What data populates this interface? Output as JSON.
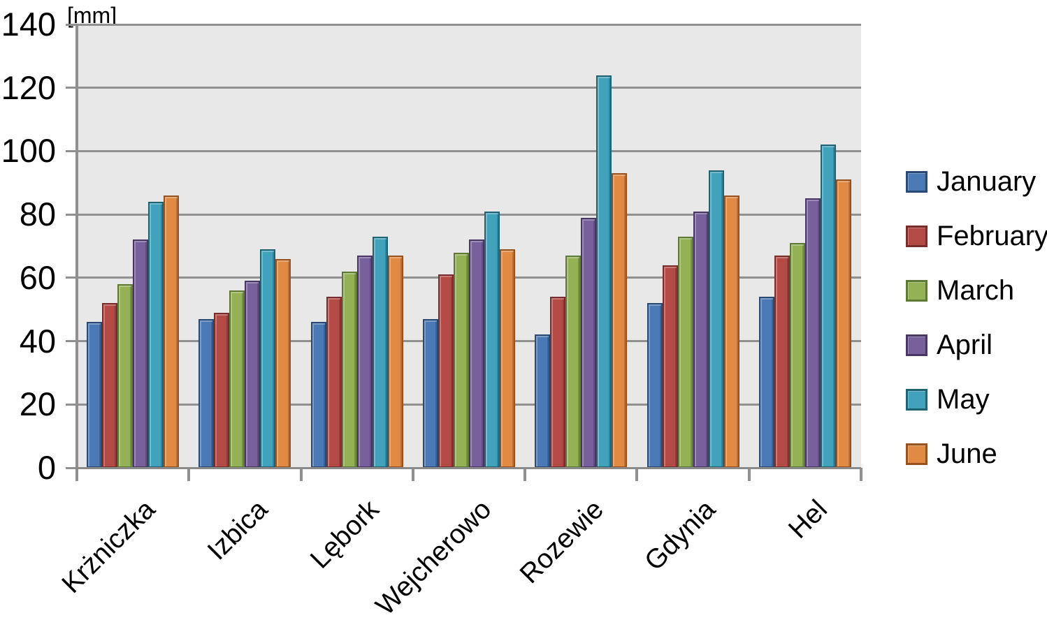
{
  "chart_data": {
    "type": "bar",
    "title": "",
    "unit_label": "[mm]",
    "xlabel": "",
    "ylabel": "[mm]",
    "categories": [
      "Krżniczka",
      "Izbica",
      "Lębork",
      "Wejcherowo",
      "Rozewie",
      "Gdynia",
      "Hel"
    ],
    "series": [
      {
        "name": "January",
        "color": "#4A79B5",
        "border": "#2B4A73",
        "values": [
          46,
          47,
          46,
          47,
          42,
          52,
          54
        ]
      },
      {
        "name": "February",
        "color": "#B34A46",
        "border": "#772E2B",
        "values": [
          52,
          49,
          54,
          61,
          54,
          64,
          67
        ]
      },
      {
        "name": "March",
        "color": "#94B156",
        "border": "#5E7836",
        "values": [
          58,
          56,
          62,
          68,
          67,
          73,
          71
        ]
      },
      {
        "name": "April",
        "color": "#77609C",
        "border": "#473762",
        "values": [
          72,
          59,
          67,
          72,
          79,
          81,
          85
        ]
      },
      {
        "name": "May",
        "color": "#42A2BC",
        "border": "#1F6272",
        "values": [
          84,
          69,
          73,
          81,
          124,
          94,
          102
        ]
      },
      {
        "name": "June",
        "color": "#E08A44",
        "border": "#97531F",
        "values": [
          86,
          66,
          67,
          69,
          93,
          86,
          91
        ]
      }
    ],
    "y_axis": {
      "min": 0,
      "max": 140,
      "step": 20,
      "tick_labels": [
        "0",
        "20",
        "40",
        "60",
        "80",
        "100",
        "120",
        "140"
      ]
    },
    "grid": true,
    "legend_position": "right",
    "plot_background": "#E8E8E8",
    "grid_color": "#909090"
  }
}
